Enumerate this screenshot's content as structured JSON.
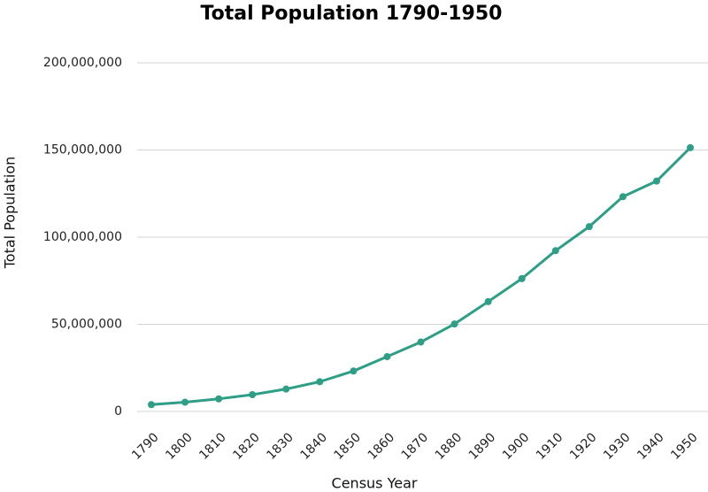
{
  "chart_data": {
    "type": "line",
    "title": "Total Population 1790-1950",
    "x_label": "Census Year",
    "y_label": "Total Population",
    "categories": [
      "1790",
      "1800",
      "1810",
      "1820",
      "1830",
      "1840",
      "1850",
      "1860",
      "1870",
      "1880",
      "1890",
      "1900",
      "1910",
      "1920",
      "1930",
      "1940",
      "1950"
    ],
    "series": [
      {
        "name": "Total Population",
        "color": "#2e9e87",
        "values": [
          3929214,
          5308483,
          7239881,
          9638453,
          12866020,
          17069453,
          23191876,
          31443321,
          39818449,
          50189209,
          62979766,
          76212168,
          92228496,
          106021537,
          123202624,
          132164569,
          151325798
        ]
      }
    ],
    "ylim": [
      0,
      200000000
    ],
    "yticks": [
      0,
      {
        "value": 50000000,
        "label": "50,000,000"
      },
      {
        "value": 100000000,
        "label": "100,000,000"
      },
      {
        "value": 150000000,
        "label": "150,000,000"
      },
      {
        "value": 200000000,
        "label": "200,000,000"
      }
    ],
    "grid": true
  }
}
